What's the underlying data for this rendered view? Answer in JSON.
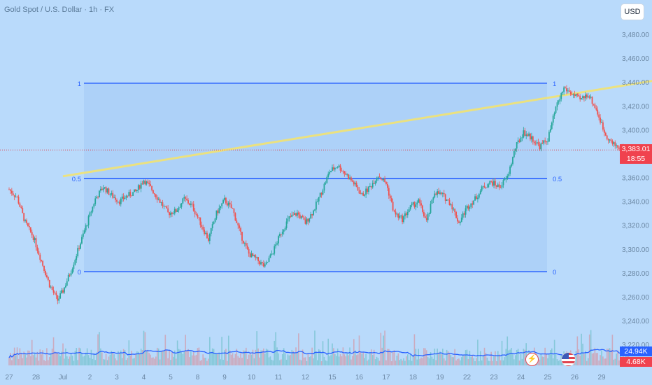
{
  "header": {
    "symbol_title": "Gold Spot / U.S. Dollar · 1h · FX"
  },
  "currency_button": "USD",
  "price_tag": {
    "price": "3,383.01",
    "countdown": "18:55"
  },
  "volume_tags": {
    "main": "24.94K",
    "secondary": "4.68K"
  },
  "colors": {
    "background": "#b9dafb",
    "up_candle": "#26a69a",
    "down_candle": "#ef5350",
    "fib_line": "#2962ff",
    "fib_zone": "#a9cdf7",
    "trendline": "#f6e46a",
    "volume_ma": "#2962ff",
    "price_line": "#e0444f"
  },
  "icons": {
    "flash": "lightning-icon",
    "flag": "us-flag-icon"
  },
  "chart_data": {
    "type": "candlestick",
    "title": "Gold Spot / U.S. Dollar · 1h · FX",
    "y_axis": {
      "range": [
        3220,
        3500
      ],
      "ticks": [
        "3,220.00",
        "3,240.00",
        "3,260.00",
        "3,280.00",
        "3,300.00",
        "3,320.00",
        "3,340.00",
        "3,360.00",
        "3,380.00",
        "3,400.00",
        "3,420.00",
        "3,440.00",
        "3,460.00",
        "3,480.00"
      ]
    },
    "x_axis": {
      "ticks": [
        "27",
        "28",
        "Jul",
        "2",
        "3",
        "4",
        "5",
        "8",
        "9",
        "10",
        "11",
        "12",
        "15",
        "16",
        "17",
        "18",
        "19",
        "22",
        "23",
        "24",
        "25",
        "26",
        "29"
      ]
    },
    "fib_levels": [
      {
        "label": "1",
        "price": 3439
      },
      {
        "label": "0.5",
        "price": 3359
      },
      {
        "label": "0",
        "price": 3281
      }
    ],
    "trendline": {
      "from": [
        2,
        3361
      ],
      "to": [
        23.9,
        3441
      ]
    },
    "last_price": 3383.01,
    "price_path": [
      [
        0.0,
        3350
      ],
      [
        0.3,
        3343
      ],
      [
        0.6,
        3322
      ],
      [
        0.9,
        3310
      ],
      [
        1.2,
        3290
      ],
      [
        1.5,
        3270
      ],
      [
        1.8,
        3257
      ],
      [
        2.0,
        3265
      ],
      [
        2.3,
        3282
      ],
      [
        2.6,
        3302
      ],
      [
        2.9,
        3322
      ],
      [
        3.2,
        3342
      ],
      [
        3.5,
        3352
      ],
      [
        3.8,
        3345
      ],
      [
        4.1,
        3340
      ],
      [
        4.4,
        3345
      ],
      [
        4.7,
        3348
      ],
      [
        5.0,
        3358
      ],
      [
        5.3,
        3350
      ],
      [
        5.6,
        3340
      ],
      [
        5.9,
        3330
      ],
      [
        6.2,
        3332
      ],
      [
        6.5,
        3342
      ],
      [
        6.8,
        3336
      ],
      [
        7.1,
        3322
      ],
      [
        7.4,
        3308
      ],
      [
        7.7,
        3330
      ],
      [
        8.0,
        3341
      ],
      [
        8.3,
        3333
      ],
      [
        8.6,
        3312
      ],
      [
        8.9,
        3296
      ],
      [
        9.2,
        3291
      ],
      [
        9.5,
        3285
      ],
      [
        9.8,
        3298
      ],
      [
        10.1,
        3314
      ],
      [
        10.4,
        3326
      ],
      [
        10.7,
        3330
      ],
      [
        11.0,
        3322
      ],
      [
        11.3,
        3332
      ],
      [
        11.6,
        3348
      ],
      [
        11.9,
        3365
      ],
      [
        12.2,
        3370
      ],
      [
        12.5,
        3363
      ],
      [
        12.8,
        3355
      ],
      [
        13.1,
        3345
      ],
      [
        13.4,
        3352
      ],
      [
        13.7,
        3362
      ],
      [
        14.0,
        3355
      ],
      [
        14.3,
        3330
      ],
      [
        14.6,
        3325
      ],
      [
        14.9,
        3335
      ],
      [
        15.2,
        3340
      ],
      [
        15.5,
        3323
      ],
      [
        15.8,
        3348
      ],
      [
        16.1,
        3345
      ],
      [
        16.4,
        3338
      ],
      [
        16.7,
        3322
      ],
      [
        17.0,
        3335
      ],
      [
        17.3,
        3342
      ],
      [
        17.6,
        3352
      ],
      [
        17.9,
        3356
      ],
      [
        18.2,
        3352
      ],
      [
        18.5,
        3360
      ],
      [
        18.8,
        3385
      ],
      [
        19.1,
        3398
      ],
      [
        19.4,
        3393
      ],
      [
        19.7,
        3386
      ],
      [
        20.0,
        3392
      ],
      [
        20.3,
        3418
      ],
      [
        20.6,
        3435
      ],
      [
        20.9,
        3430
      ],
      [
        21.2,
        3425
      ],
      [
        21.5,
        3430
      ],
      [
        21.8,
        3417
      ],
      [
        22.1,
        3398
      ],
      [
        22.4,
        3388
      ],
      [
        22.7,
        3385
      ],
      [
        23.0,
        3383
      ]
    ],
    "series": [
      {
        "name": "Volume MA",
        "type": "line"
      }
    ]
  }
}
